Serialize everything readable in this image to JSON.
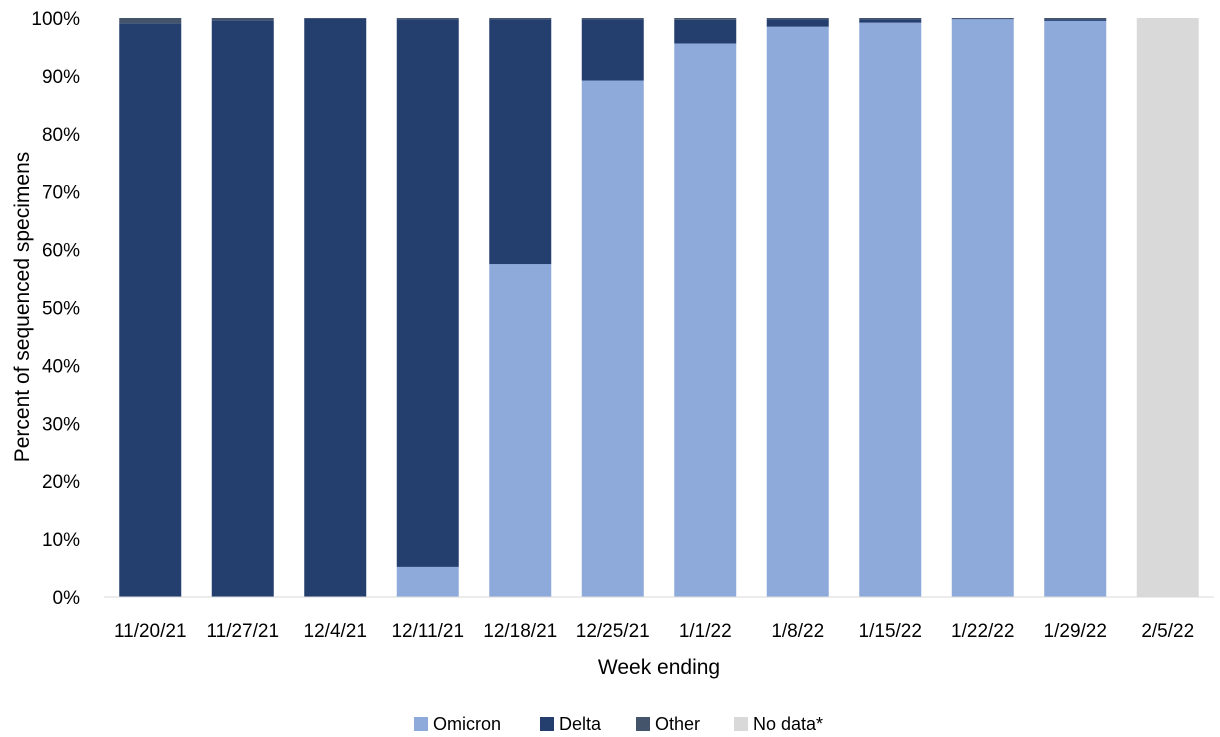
{
  "chart_data": {
    "type": "bar",
    "stacked": true,
    "title": "",
    "xlabel": "Week ending",
    "ylabel": "Percent of sequenced specimens",
    "ylim": [
      0,
      100
    ],
    "yticks": [
      "0%",
      "10%",
      "20%",
      "30%",
      "40%",
      "50%",
      "60%",
      "70%",
      "80%",
      "90%",
      "100%"
    ],
    "grid": false,
    "legend_position": "bottom",
    "categories": [
      "11/20/21",
      "11/27/21",
      "12/4/21",
      "12/11/21",
      "12/18/21",
      "12/25/21",
      "1/1/22",
      "1/8/22",
      "1/15/22",
      "1/22/22",
      "1/29/22",
      "2/5/22"
    ],
    "series": [
      {
        "name": "Omicron",
        "color": "#8eaadb",
        "values": [
          0,
          0,
          0,
          5.2,
          57.5,
          89.2,
          95.6,
          98.5,
          99.2,
          99.8,
          99.5,
          0
        ]
      },
      {
        "name": "Delta",
        "color": "#243f6e",
        "values": [
          99.1,
          99.6,
          99.9,
          94.6,
          42.3,
          10.6,
          4.1,
          1.3,
          0.6,
          0.1,
          0.3,
          0
        ]
      },
      {
        "name": "Other",
        "color": "#44546a",
        "values": [
          0.9,
          0.4,
          0.1,
          0.2,
          0.2,
          0.2,
          0.3,
          0.2,
          0.2,
          0.1,
          0.2,
          0
        ]
      },
      {
        "name": "No data*",
        "color": "#d9d9d9",
        "values": [
          0,
          0,
          0,
          0,
          0,
          0,
          0,
          0,
          0,
          0,
          0,
          100
        ]
      }
    ]
  }
}
